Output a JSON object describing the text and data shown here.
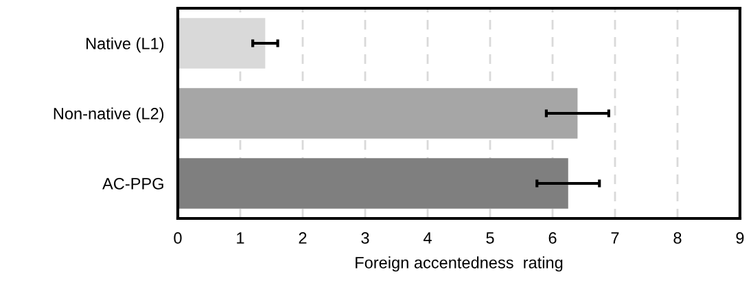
{
  "chart_data": {
    "type": "bar",
    "orientation": "horizontal",
    "xlabel": "Foreign accentedness  rating",
    "categories": [
      "Native (L1)",
      "Non-native (L2)",
      "AC-PPG"
    ],
    "values": [
      1.4,
      6.4,
      6.25
    ],
    "errors": [
      0.2,
      0.5,
      0.5
    ],
    "colors": [
      "#d9d9d9",
      "#a6a6a6",
      "#7f7f7f"
    ],
    "xlim": [
      0,
      9
    ],
    "xticks": [
      0,
      1,
      2,
      3,
      4,
      5,
      6,
      7,
      8,
      9
    ],
    "grid": "x"
  }
}
